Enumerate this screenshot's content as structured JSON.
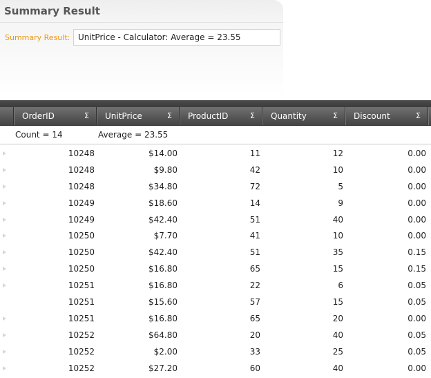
{
  "summary": {
    "title": "Summary Result",
    "label": "Summary Result:",
    "value": "UnitPrice - Calculator: Average = 23.55"
  },
  "grid": {
    "columns": [
      {
        "key": "order_id",
        "label": "OrderID",
        "aggregate_icon": "Σ"
      },
      {
        "key": "unit_price",
        "label": "UnitPrice",
        "aggregate_icon": "Σ"
      },
      {
        "key": "product_id",
        "label": "ProductID",
        "aggregate_icon": "Σ"
      },
      {
        "key": "quantity",
        "label": "Quantity",
        "aggregate_icon": "Σ"
      },
      {
        "key": "discount",
        "label": "Discount",
        "aggregate_icon": "Σ"
      }
    ],
    "aggregates": {
      "count": "Count = 14",
      "average": "Average = 23.55"
    },
    "rows": [
      {
        "order_id": "10248",
        "unit_price": "$14.00",
        "product_id": "11",
        "quantity": "12",
        "discount": "0.00",
        "indicator": true
      },
      {
        "order_id": "10248",
        "unit_price": "$9.80",
        "product_id": "42",
        "quantity": "10",
        "discount": "0.00",
        "indicator": true
      },
      {
        "order_id": "10248",
        "unit_price": "$34.80",
        "product_id": "72",
        "quantity": "5",
        "discount": "0.00",
        "indicator": true
      },
      {
        "order_id": "10249",
        "unit_price": "$18.60",
        "product_id": "14",
        "quantity": "9",
        "discount": "0.00",
        "indicator": true
      },
      {
        "order_id": "10249",
        "unit_price": "$42.40",
        "product_id": "51",
        "quantity": "40",
        "discount": "0.00",
        "indicator": true
      },
      {
        "order_id": "10250",
        "unit_price": "$7.70",
        "product_id": "41",
        "quantity": "10",
        "discount": "0.00",
        "indicator": true
      },
      {
        "order_id": "10250",
        "unit_price": "$42.40",
        "product_id": "51",
        "quantity": "35",
        "discount": "0.15",
        "indicator": true
      },
      {
        "order_id": "10250",
        "unit_price": "$16.80",
        "product_id": "65",
        "quantity": "15",
        "discount": "0.15",
        "indicator": true
      },
      {
        "order_id": "10251",
        "unit_price": "$16.80",
        "product_id": "22",
        "quantity": "6",
        "discount": "0.05",
        "indicator": true
      },
      {
        "order_id": "10251",
        "unit_price": "$15.60",
        "product_id": "57",
        "quantity": "15",
        "discount": "0.05",
        "indicator": false
      },
      {
        "order_id": "10251",
        "unit_price": "$16.80",
        "product_id": "65",
        "quantity": "20",
        "discount": "0.00",
        "indicator": true
      },
      {
        "order_id": "10252",
        "unit_price": "$64.80",
        "product_id": "20",
        "quantity": "40",
        "discount": "0.05",
        "indicator": true
      },
      {
        "order_id": "10252",
        "unit_price": "$2.00",
        "product_id": "33",
        "quantity": "25",
        "discount": "0.05",
        "indicator": true
      },
      {
        "order_id": "10252",
        "unit_price": "$27.20",
        "product_id": "60",
        "quantity": "40",
        "discount": "0.00",
        "indicator": true
      }
    ]
  }
}
